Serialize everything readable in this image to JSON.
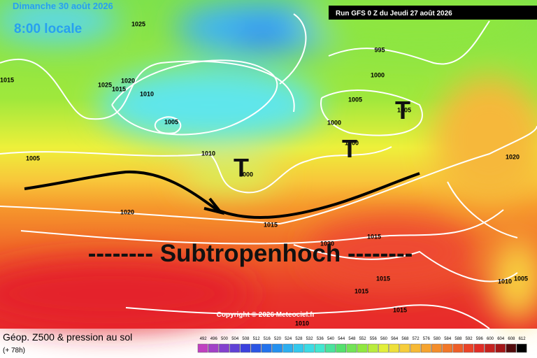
{
  "header": {
    "date": "Dimanche 30 août 2026",
    "time": "8:00 locale",
    "run": "Run GFS 0 Z du Jeudi 27 août 2026"
  },
  "map": {
    "isobar_labels": [
      1025,
      1015,
      1020,
      1025,
      1015,
      1010,
      1005,
      1005,
      1010,
      1000,
      995,
      1000,
      1005,
      1005,
      1000,
      1000,
      1020,
      1020,
      1015,
      1015,
      1020,
      1015,
      1015,
      1015,
      1010,
      1005,
      1010
    ],
    "lows": [
      "T",
      "T",
      "T"
    ],
    "annotation": "-------- Subtropenhoch --------",
    "copyright": "Copyright © 2026 Meteociel.fr"
  },
  "footer": {
    "title": "Géop. Z500 & pression au sol",
    "lead": "(+ 78h)",
    "scale": [
      492,
      496,
      500,
      504,
      508,
      512,
      516,
      520,
      524,
      528,
      532,
      536,
      540,
      544,
      548,
      552,
      556,
      560,
      564,
      568,
      572,
      576,
      580,
      584,
      588,
      592,
      596,
      600,
      604,
      608,
      612
    ]
  }
}
